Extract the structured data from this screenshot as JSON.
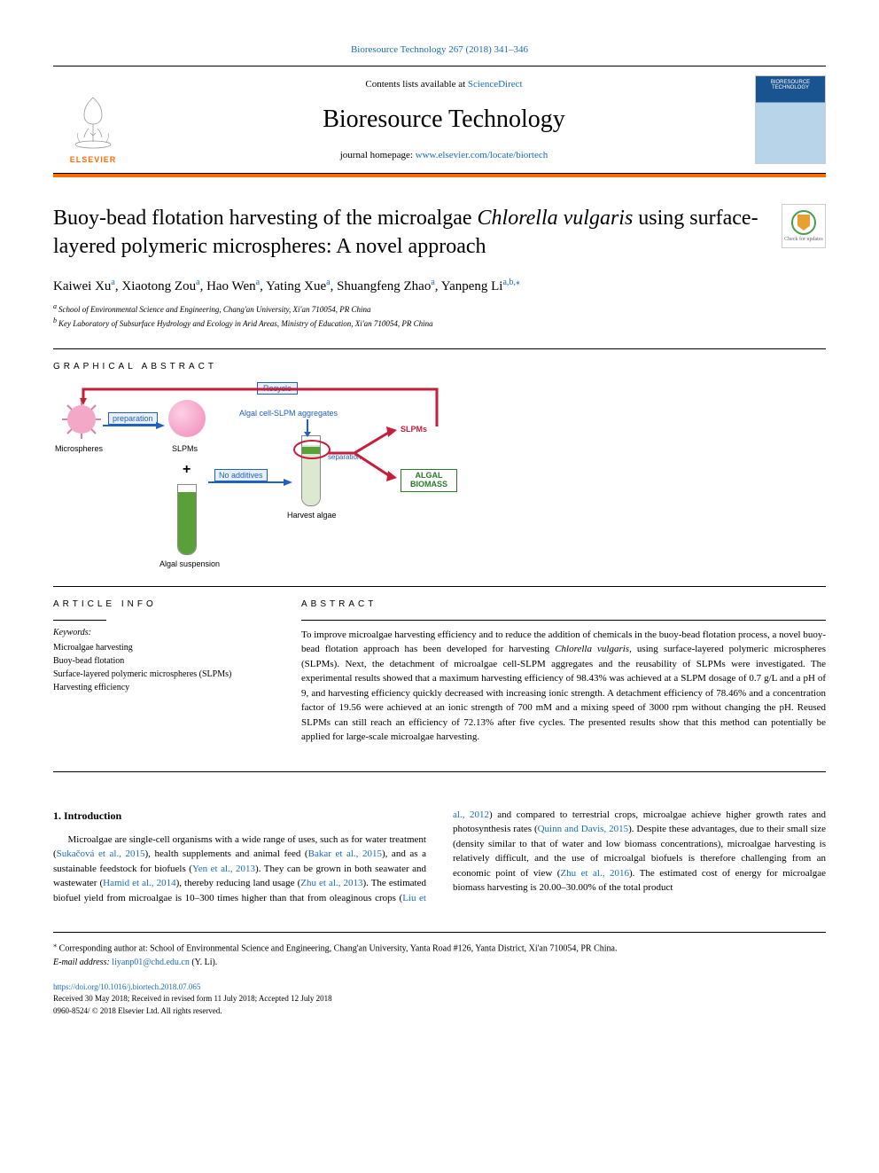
{
  "journal_ref": "Bioresource Technology 267 (2018) 341–346",
  "header": {
    "contents_prefix": "Contents lists available at ",
    "contents_link": "ScienceDirect",
    "journal_title": "Bioresource Technology",
    "homepage_prefix": "journal homepage: ",
    "homepage_link": "www.elsevier.com/locate/biortech",
    "elsevier_label": "ELSEVIER",
    "cover_title": "BIORESOURCE TECHNOLOGY",
    "updates_text": "Check for updates"
  },
  "article": {
    "title_pre": "Buoy-bead flotation harvesting of the microalgae ",
    "title_em": "Chlorella vulgaris",
    "title_post": " using surface-layered polymeric microspheres: A novel approach",
    "authors": [
      {
        "name": "Kaiwei Xu",
        "sup": "a"
      },
      {
        "name": "Xiaotong Zou",
        "sup": "a"
      },
      {
        "name": "Hao Wen",
        "sup": "a"
      },
      {
        "name": "Yating Xue",
        "sup": "a"
      },
      {
        "name": "Shuangfeng Zhao",
        "sup": "a"
      },
      {
        "name": "Yanpeng Li",
        "sup": "a,b,⁎"
      }
    ],
    "affiliations": [
      {
        "sup": "a",
        "text": "School of Environmental Science and Engineering, Chang'an University, Xi'an 710054, PR China"
      },
      {
        "sup": "b",
        "text": "Key Laboratory of Subsurface Hydrology and Ecology in Arid Areas, Ministry of Education, Xi'an 710054, PR China"
      }
    ]
  },
  "sections": {
    "graphical_label": "GRAPHICAL ABSTRACT",
    "article_info_label": "ARTICLE INFO",
    "abstract_label": "ABSTRACT"
  },
  "graphical": {
    "microsphere_label": "Microspheres",
    "slpms_label": "SLPMs",
    "algal_susp_label": "Algal suspension",
    "preparation_label": "preparation",
    "no_additives_label": "No additives",
    "recycle_label": "Recycle",
    "aggregates_label": "Algal cell-SLPM aggregates",
    "separation_label": "separation",
    "slpms_out_label": "SLPMs",
    "algal_biomass_label": "ALGAL BIOMASS",
    "harvest_label": "Harvest algae",
    "plus": "+",
    "colors": {
      "microsphere_pink": "#f4a8c8",
      "microsphere_spikes": "#d680b0",
      "arrow_red": "#c41e3a",
      "arrow_blue": "#2060c0",
      "box_blue_border": "#2060c0",
      "box_blue_fill": "#e8f0fc",
      "text_red": "#c41e3a",
      "text_green": "#2a7a2a",
      "tube_green": "#5aa038",
      "tube_clear": "#dce8d0"
    }
  },
  "keywords": {
    "label": "Keywords:",
    "items": [
      "Microalgae harvesting",
      "Buoy-bead flotation",
      "Surface-layered polymeric microspheres (SLPMs)",
      "Harvesting efficiency"
    ]
  },
  "abstract": {
    "p1_a": "To improve microalgae harvesting efficiency and to reduce the addition of chemicals in the buoy-bead flotation process, a novel buoy-bead flotation approach has been developed for harvesting ",
    "p1_em": "Chlorella vulgaris",
    "p1_b": ", using surface-layered polymeric microspheres (SLPMs). Next, the detachment of microalgae cell-SLPM aggregates and the reusability of SLPMs were investigated. The experimental results showed that a maximum harvesting efficiency of 98.43% was achieved at a SLPM dosage of 0.7 g/L and a pH of 9, and harvesting efficiency quickly decreased with increasing ionic strength. A detachment efficiency of 78.46% and a concentration factor of 19.56 were achieved at an ionic strength of 700 mM and a mixing speed of 3000 rpm without changing the pH. Reused SLPMs can still reach an efficiency of 72.13% after five cycles. The presented results show that this method can potentially be applied for large-scale microalgae harvesting."
  },
  "body": {
    "heading": "1. Introduction",
    "para_a": "Microalgae are single-cell organisms with a wide range of uses, such as for water treatment (",
    "cite1": "Sukačová et al., 2015",
    "para_b": "), health supplements and animal feed (",
    "cite2": "Bakar et al., 2015",
    "para_c": "), and as a sustainable feedstock for biofuels (",
    "cite3": "Yen et al., 2013",
    "para_d": "). They can be grown in both seawater and wastewater (",
    "cite4": "Hamid et al., 2014",
    "para_e": "), thereby reducing land usage (",
    "cite5": "Zhu et al., 2013",
    "para_f": "). The estimated biofuel yield from microalgae is 10–300 times higher than that from oleaginous crops (",
    "cite6": "Liu et al., 2012",
    "para_g": ") and compared to terrestrial crops, microalgae achieve higher growth rates and photosynthesis rates (",
    "cite7": "Quinn and Davis, 2015",
    "para_h": "). Despite these advantages, due to their small size (density similar to that of water and low biomass concentrations), microalgae harvesting is relatively difficult, and the use of microalgal biofuels is therefore challenging from an economic point of view (",
    "cite8": "Zhu et al., 2016",
    "para_i": "). The estimated cost of energy for microalgae biomass harvesting is 20.00–30.00% of the total product"
  },
  "footnotes": {
    "corr_marker": "⁎",
    "corr_text": " Corresponding author at: School of Environmental Science and Engineering, Chang'an University, Yanta Road #126, Yanta District, Xi'an 710054, PR China.",
    "email_label": "E-mail address: ",
    "email": "liyanp01@chd.edu.cn",
    "email_suffix": " (Y. Li)."
  },
  "footer": {
    "doi": "https://doi.org/10.1016/j.biortech.2018.07.065",
    "received": "Received 30 May 2018; Received in revised form 11 July 2018; Accepted 12 July 2018",
    "copyright": "0960-8524/ © 2018 Elsevier Ltd. All rights reserved."
  }
}
